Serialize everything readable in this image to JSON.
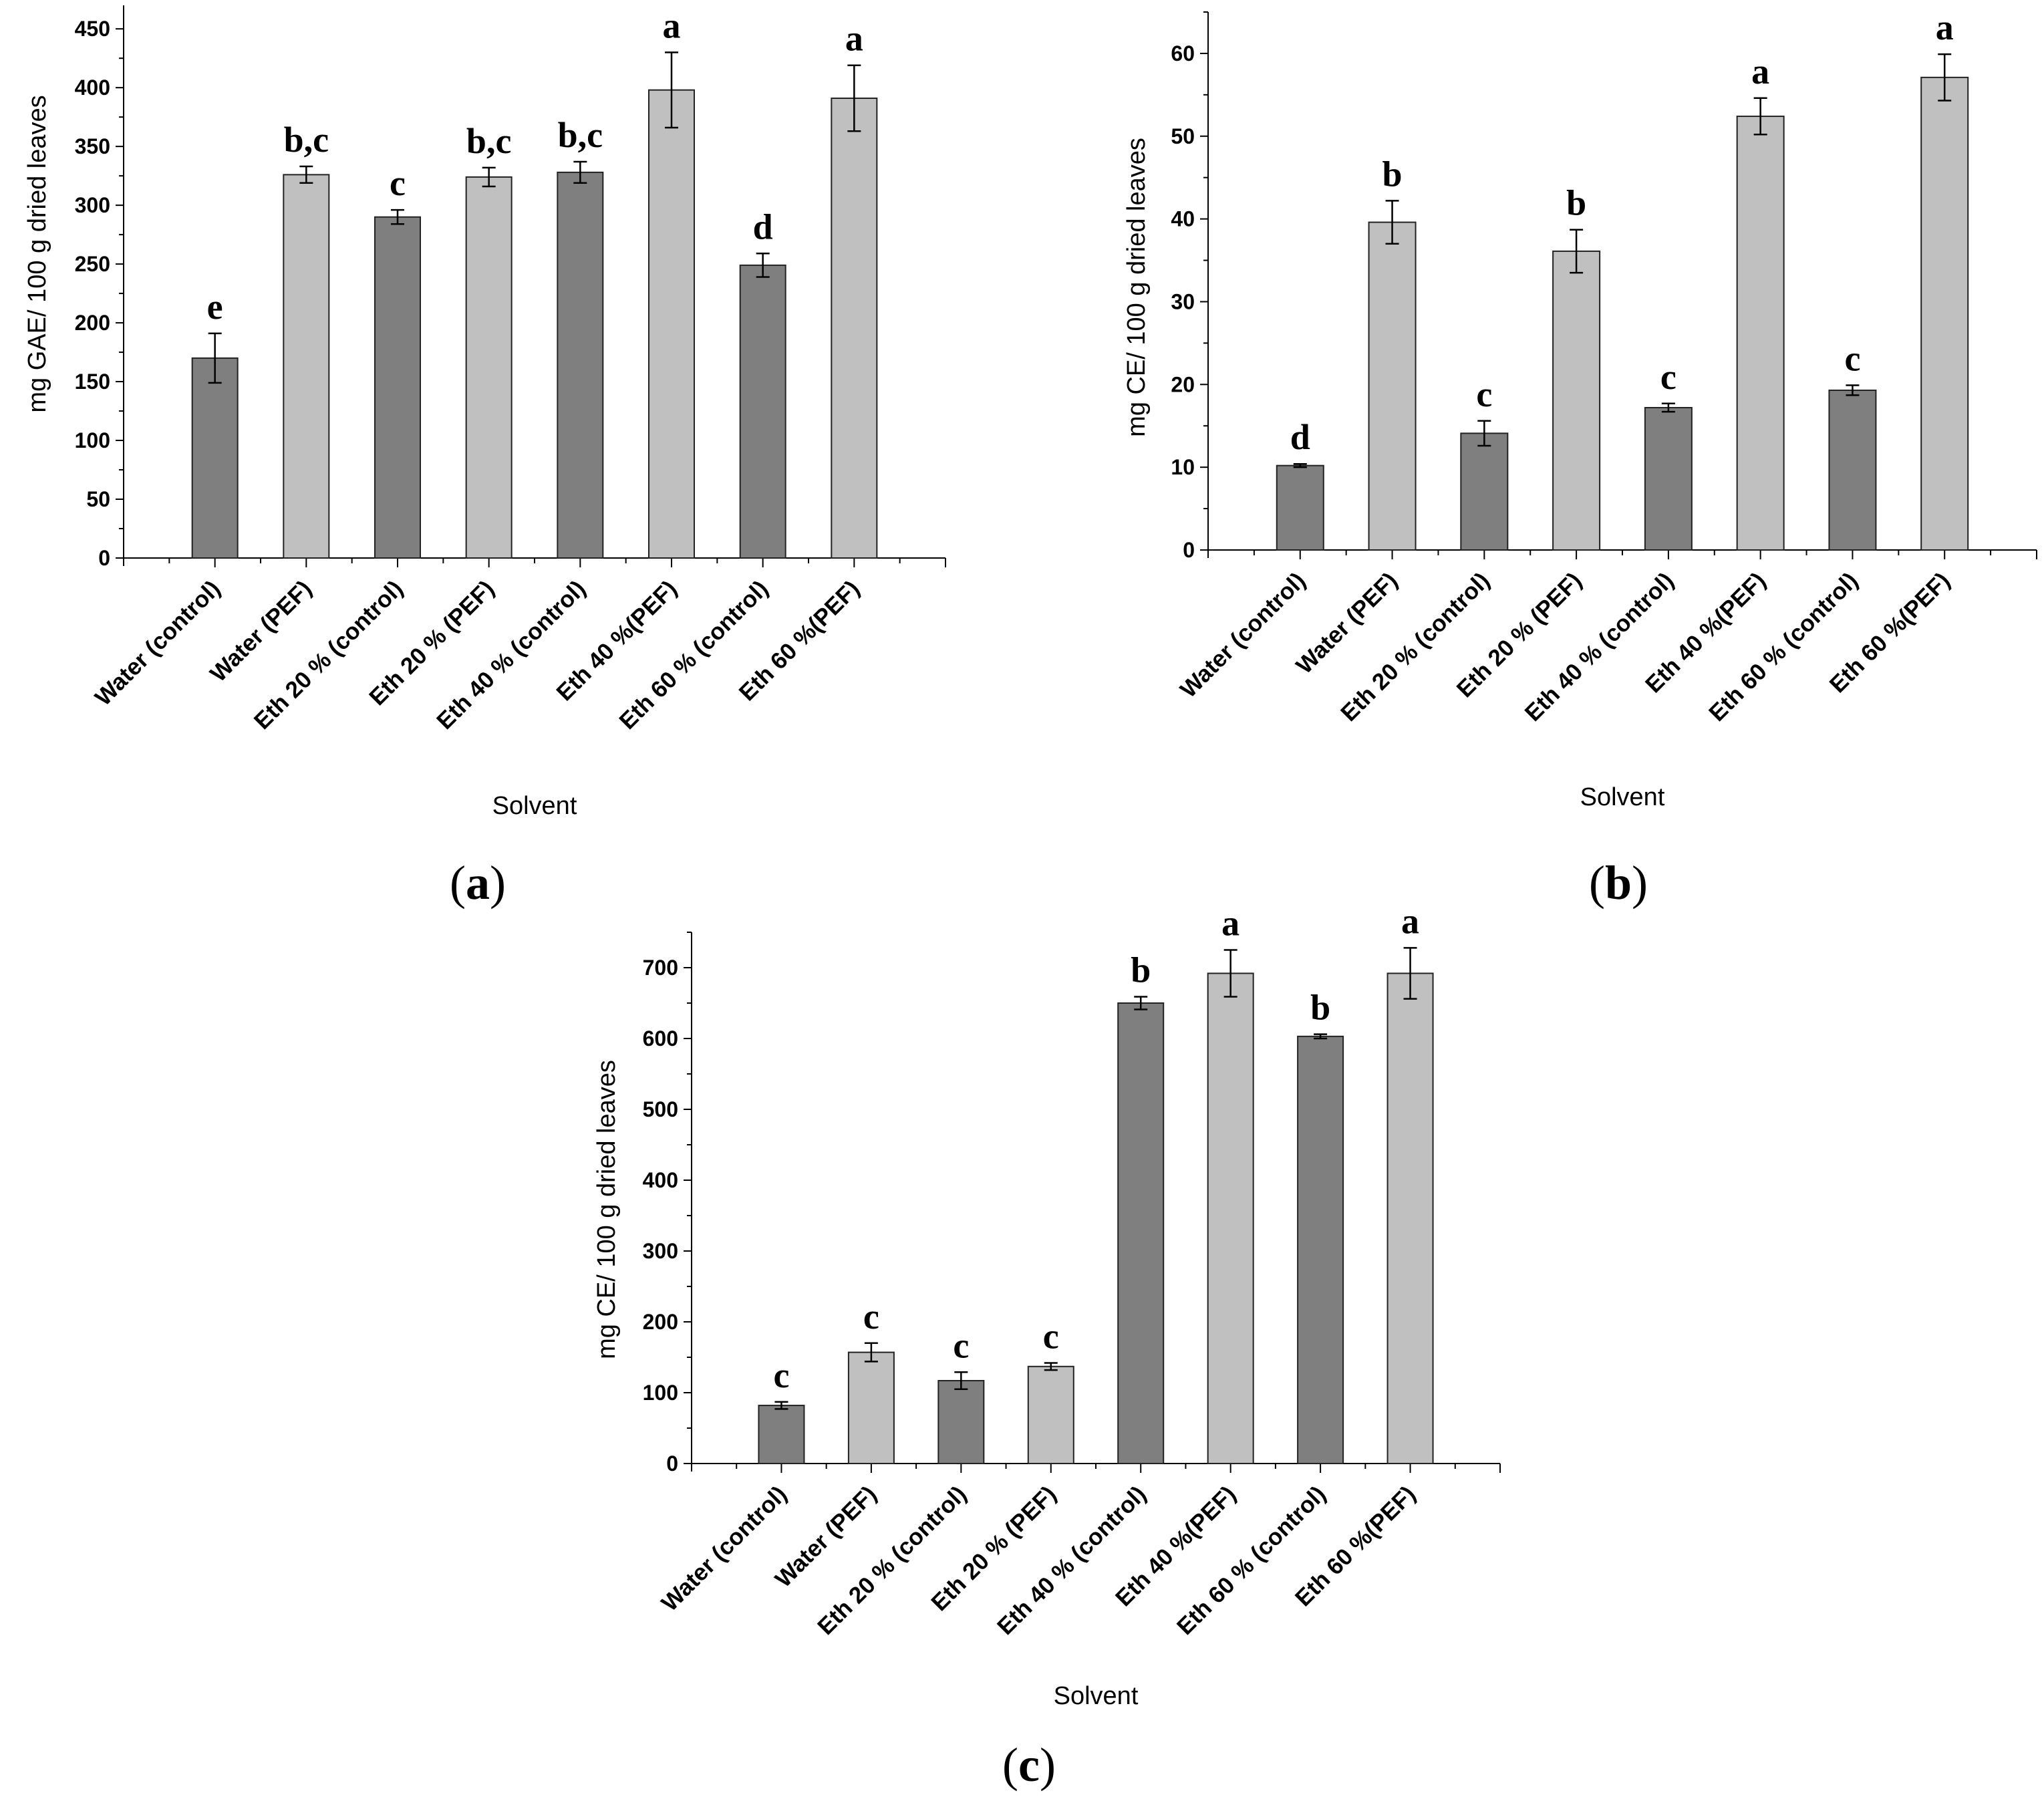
{
  "chart_data": [
    {
      "panel": "a",
      "type": "bar",
      "xlabel": "Solvent",
      "ylabel": "mg GAE/ 100 g dried leaves",
      "ylim": [
        0,
        470
      ],
      "yticks": [
        0,
        50,
        100,
        150,
        200,
        250,
        300,
        350,
        400,
        450
      ],
      "categories": [
        "Water (control)",
        "Water (PEF)",
        "Eth 20 % (control)",
        "Eth 20 % (PEF)",
        "Eth 40 % (control)",
        "Eth 40 %(PEF)",
        "Eth 60 % (control)",
        "Eth 60 %(PEF)"
      ],
      "values": [
        170,
        326,
        290,
        324,
        328,
        398,
        249,
        391
      ],
      "errors": [
        21,
        7,
        6,
        8,
        9,
        32,
        10,
        28
      ],
      "letters": [
        "e",
        "b,c",
        "c",
        "b,c",
        "b,c",
        "a",
        "d",
        "a"
      ],
      "bar_colors": [
        "#7f7f7f",
        "#c0c0c0",
        "#7f7f7f",
        "#c0c0c0",
        "#7f7f7f",
        "#c0c0c0",
        "#7f7f7f",
        "#c0c0c0"
      ]
    },
    {
      "panel": "b",
      "type": "bar",
      "xlabel": "Solvent",
      "ylabel": "mg CE/ 100 g dried leaves",
      "ylim": [
        0,
        65
      ],
      "yticks": [
        0,
        10,
        20,
        30,
        40,
        50,
        60
      ],
      "categories": [
        "Water (control)",
        "Water (PEF)",
        "Eth 20 % (control)",
        "Eth 20 % (PEF)",
        "Eth 40 % (control)",
        "Eth 40 %(PEF)",
        "Eth 60 % (control)",
        "Eth 60 %(PEF)"
      ],
      "values": [
        10.2,
        39.6,
        14.1,
        36.1,
        17.2,
        52.4,
        19.3,
        57.1
      ],
      "errors": [
        0.2,
        2.6,
        1.5,
        2.6,
        0.5,
        2.2,
        0.6,
        2.8
      ],
      "letters": [
        "d",
        "b",
        "c",
        "b",
        "c",
        "a",
        "c",
        "a"
      ],
      "bar_colors": [
        "#7f7f7f",
        "#c0c0c0",
        "#7f7f7f",
        "#c0c0c0",
        "#7f7f7f",
        "#c0c0c0",
        "#7f7f7f",
        "#c0c0c0"
      ]
    },
    {
      "panel": "c",
      "type": "bar",
      "xlabel": "Solvent",
      "ylabel": "mg CE/ 100 g dried leaves",
      "ylim": [
        0,
        750
      ],
      "yticks": [
        0,
        100,
        200,
        300,
        400,
        500,
        600,
        700
      ],
      "categories": [
        "Water (control)",
        "Water (PEF)",
        "Eth 20 % (control)",
        "Eth 20 % (PEF)",
        "Eth 40 % (control)",
        "Eth 40 %(PEF)",
        "Eth 60 % (control)",
        "Eth 60 %(PEF)"
      ],
      "values": [
        82,
        157,
        117,
        137,
        650,
        692,
        603,
        692
      ],
      "errors": [
        5,
        13,
        12,
        5,
        9,
        33,
        3,
        36
      ],
      "letters": [
        "c",
        "c",
        "c",
        "c",
        "b",
        "a",
        "b",
        "a"
      ],
      "bar_colors": [
        "#7f7f7f",
        "#c0c0c0",
        "#7f7f7f",
        "#c0c0c0",
        "#7f7f7f",
        "#c0c0c0",
        "#7f7f7f",
        "#c0c0c0"
      ]
    }
  ],
  "panel_labels": [
    "(a)",
    "(b)",
    "(c)"
  ]
}
